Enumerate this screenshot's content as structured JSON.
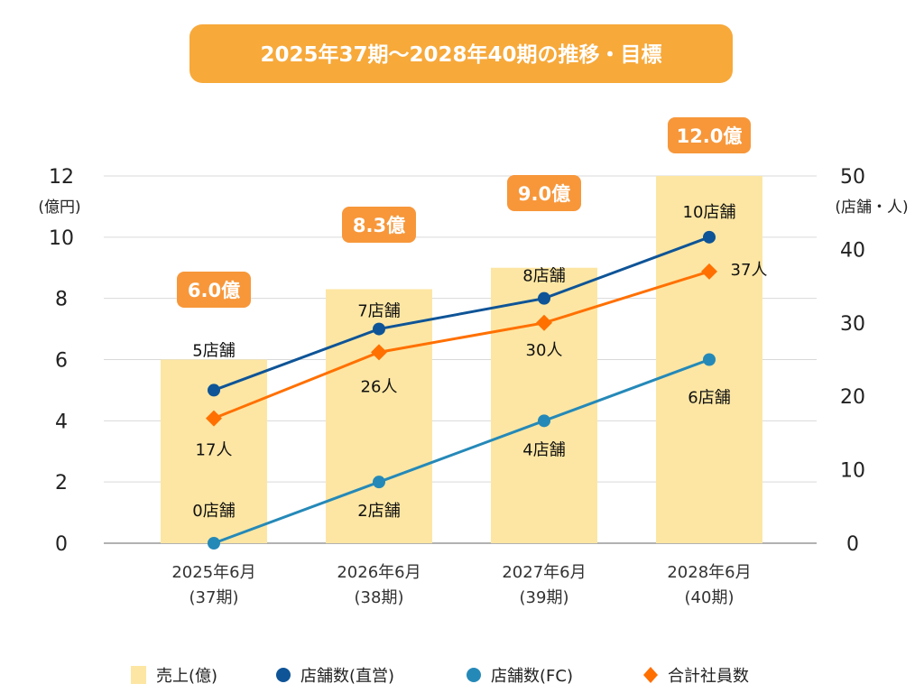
{
  "chart_data": {
    "type": "bar+line",
    "title": "2025年37期〜2028年40期の推移・目標",
    "categories": [
      {
        "line1": "2025年6月",
        "line2": "(37期)"
      },
      {
        "line1": "2026年6月",
        "line2": "(38期)"
      },
      {
        "line1": "2027年6月",
        "line2": "(39期)"
      },
      {
        "line1": "2028年6月",
        "line2": "(40期)"
      }
    ],
    "left_axis": {
      "unit": "(億円)",
      "ylim": [
        0,
        12
      ],
      "ticks": [
        0,
        2,
        4,
        6,
        8,
        10,
        12
      ]
    },
    "right_axis": {
      "unit": "(店舗・人)",
      "ylim": [
        0,
        50
      ],
      "ticks": [
        0,
        10,
        20,
        30,
        40,
        50
      ]
    },
    "grid": true,
    "legend_position": "bottom",
    "series": [
      {
        "name": "売上(億)",
        "kind": "bar",
        "axis": "left",
        "color": "#fde6a3",
        "values": [
          6.0,
          8.3,
          9.0,
          12.0
        ],
        "labels": [
          "6.0億",
          "8.3億",
          "9.0億",
          "12.0億"
        ],
        "label_box_color": "#f7973a"
      },
      {
        "name": "店舗数(直営)",
        "kind": "line",
        "marker": "circle",
        "axis": "left",
        "color": "#0e5497",
        "values": [
          5,
          7,
          8,
          10
        ],
        "labels": [
          "5店舗",
          "7店舗",
          "8店舗",
          "10店舗"
        ]
      },
      {
        "name": "店舗数(FC)",
        "kind": "line",
        "marker": "circle",
        "axis": "left",
        "color": "#2589b8",
        "values": [
          0,
          2,
          4,
          6
        ],
        "labels": [
          "0店舗",
          "2店舗",
          "4店舗",
          "6店舗"
        ]
      },
      {
        "name": "合計社員数",
        "kind": "line",
        "marker": "diamond",
        "axis": "right",
        "color": "#ff7000",
        "values": [
          17,
          26,
          30,
          37
        ],
        "labels": [
          "17人",
          "26人",
          "30人",
          "37人"
        ]
      }
    ],
    "title_box_color": "#f7a93a"
  }
}
